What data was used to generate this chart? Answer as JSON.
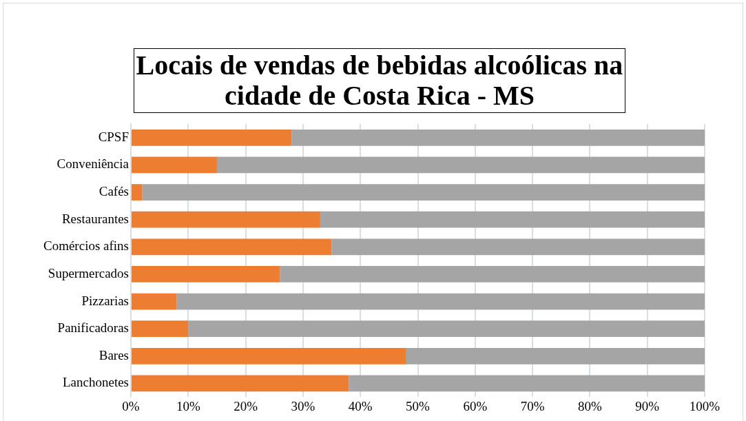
{
  "chart_data": {
    "type": "bar",
    "orientation": "horizontal",
    "stacked": true,
    "title": "Locais de vendas de bebidas alcoólicas na cidade de Costa Rica - MS",
    "categories": [
      "CPSF",
      "Conveniência",
      "Cafés",
      "Restaurantes",
      "Comércios afins",
      "Supermercados",
      "Pizzarias",
      "Panificadoras",
      "Bares",
      "Lanchonetes"
    ],
    "series": [
      {
        "color": "#ed7d31",
        "values": [
          28,
          15,
          2,
          33,
          35,
          26,
          8,
          10,
          48,
          38
        ]
      },
      {
        "color": "#a5a5a5",
        "values": [
          72,
          85,
          98,
          67,
          65,
          74,
          92,
          90,
          52,
          62
        ]
      }
    ],
    "xlim": [
      0,
      100
    ],
    "xticks": [
      {
        "value": 0,
        "label": "0%"
      },
      {
        "value": 10,
        "label": "10%"
      },
      {
        "value": 20,
        "label": "20%"
      },
      {
        "value": 30,
        "label": "30%"
      },
      {
        "value": 40,
        "label": "40%"
      },
      {
        "value": 50,
        "label": "50%"
      },
      {
        "value": 60,
        "label": "60%"
      },
      {
        "value": 70,
        "label": "70%"
      },
      {
        "value": 80,
        "label": "80%"
      },
      {
        "value": 90,
        "label": "90%"
      },
      {
        "value": 100,
        "label": "100%"
      }
    ],
    "grid": "x",
    "legend": false
  }
}
